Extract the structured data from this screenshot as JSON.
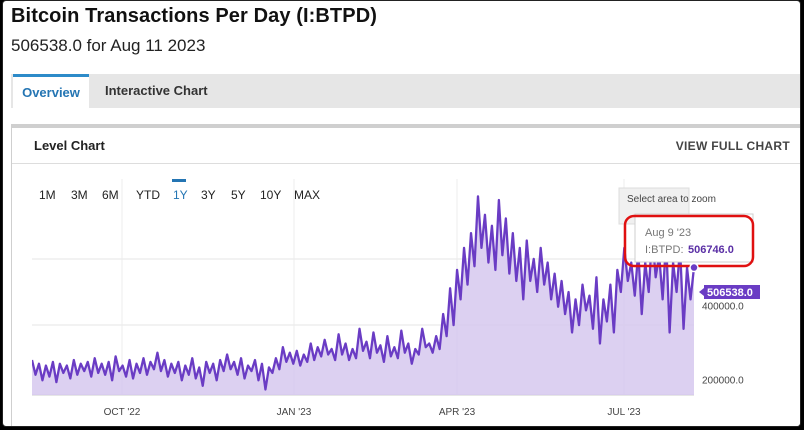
{
  "header": {
    "title": "Bitcoin Transactions Per Day (I:BTPD)",
    "subtitle": "506538.0 for Aug 11 2023"
  },
  "tabs": [
    {
      "label": "Overview",
      "active": true
    },
    {
      "label": "Interactive Chart",
      "active": false
    }
  ],
  "panel": {
    "title": "Level Chart",
    "view_full": "VIEW FULL CHART"
  },
  "ranges": [
    "1M",
    "3M",
    "6M",
    "YTD",
    "1Y",
    "3Y",
    "5Y",
    "10Y",
    "MAX"
  ],
  "active_range": "1Y",
  "select_hint": "Select area to zoom",
  "tooltip": {
    "date": "Aug 9 '23",
    "label": "I:BTPD:",
    "value": "506746.0"
  },
  "last_value_label": "506538.0",
  "colors": {
    "line": "#6a3cc4",
    "fill": "#d6c8ef",
    "tooltip_highlight": "#e01010",
    "active_tab": "#2d8bc9"
  },
  "chart_data": {
    "type": "area",
    "y_ticks": [
      "400000.0",
      "200000.0"
    ],
    "x_ticks": [
      "OCT '22",
      "JAN '23",
      "APR '23",
      "JUL '23"
    ],
    "ylim": [
      160000,
      720000
    ],
    "series": [
      {
        "values": [
          255000,
          215000,
          245000,
          200000,
          240000,
          210000,
          250000,
          195000,
          245000,
          220000,
          240000,
          205000,
          255000,
          215000,
          245000,
          225000,
          250000,
          210000,
          260000,
          220000,
          245000,
          215000,
          250000,
          200000,
          265000,
          225000,
          240000,
          210000,
          255000,
          205000,
          245000,
          220000,
          260000,
          215000,
          250000,
          230000,
          275000,
          225000,
          255000,
          210000,
          245000,
          220000,
          250000,
          200000,
          240000,
          215000,
          260000,
          205000,
          235000,
          185000,
          250000,
          220000,
          245000,
          200000,
          255000,
          225000,
          270000,
          230000,
          250000,
          215000,
          260000,
          205000,
          240000,
          225000,
          255000,
          200000,
          245000,
          175000,
          235000,
          220000,
          260000,
          230000,
          290000,
          250000,
          275000,
          245000,
          280000,
          240000,
          270000,
          250000,
          300000,
          255000,
          290000,
          265000,
          310000,
          270000,
          285000,
          255000,
          325000,
          270000,
          300000,
          255000,
          285000,
          260000,
          340000,
          280000,
          305000,
          260000,
          330000,
          275000,
          295000,
          250000,
          320000,
          265000,
          290000,
          260000,
          335000,
          275000,
          300000,
          245000,
          285000,
          270000,
          340000,
          290000,
          300000,
          275000,
          320000,
          285000,
          380000,
          320000,
          450000,
          350000,
          500000,
          420000,
          560000,
          460000,
          600000,
          510000,
          700000,
          560000,
          650000,
          520000,
          620000,
          500000,
          690000,
          540000,
          640000,
          490000,
          600000,
          470000,
          560000,
          420000,
          580000,
          470000,
          530000,
          440000,
          560000,
          460000,
          520000,
          420000,
          490000,
          400000,
          470000,
          380000,
          440000,
          330000,
          420000,
          350000,
          460000,
          390000,
          430000,
          340000,
          480000,
          300000,
          420000,
          360000,
          460000,
          330000,
          500000,
          440000,
          560000,
          470000,
          520000,
          430000,
          550000,
          380000,
          520000,
          440000,
          600000,
          480000,
          540000,
          420000,
          580000,
          330000,
          520000,
          440000,
          560000,
          340000,
          506746,
          420000,
          506538
        ]
      }
    ]
  }
}
